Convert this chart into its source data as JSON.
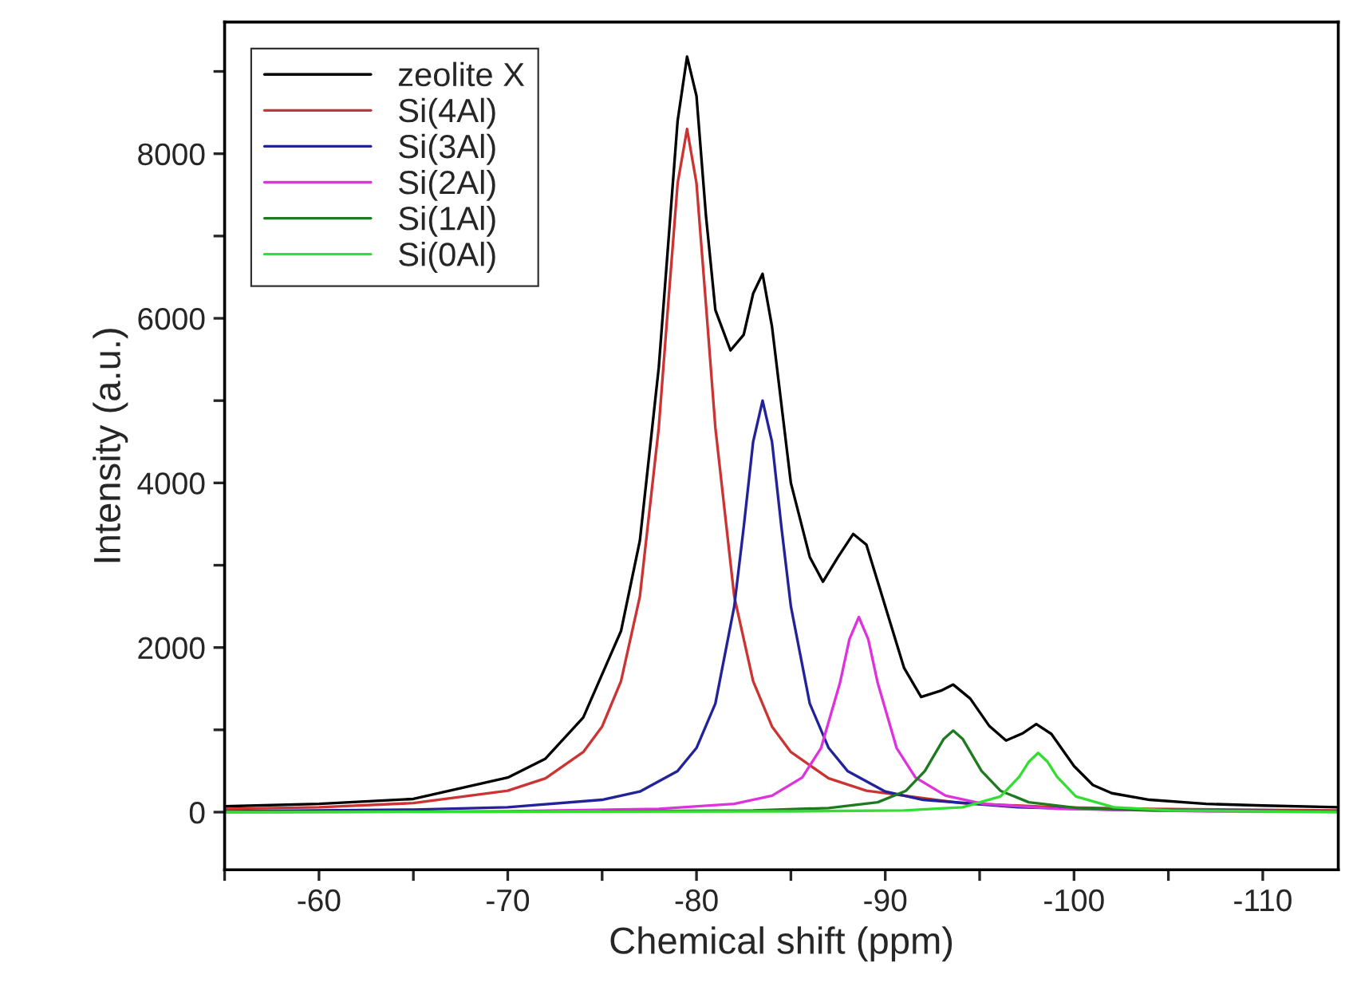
{
  "chart_data": {
    "type": "line",
    "xlabel": "Chemical shift (ppm)",
    "ylabel": "Intensity (a.u.)",
    "xlim": [
      -55,
      -114
    ],
    "ylim": [
      -700,
      9600
    ],
    "xticks": [
      {
        "value": -55,
        "label": null
      },
      -60,
      {
        "value": -65,
        "label": null
      },
      -70,
      {
        "value": -75,
        "label": null
      },
      -80,
      {
        "value": -85,
        "label": null
      },
      -90,
      {
        "value": -95,
        "label": null
      },
      -100,
      {
        "value": -105,
        "label": null
      },
      -110
    ],
    "yticks": [
      0,
      {
        "value": 1000,
        "label": null
      },
      2000,
      {
        "value": 3000,
        "label": null
      },
      4000,
      {
        "value": 5000,
        "label": null
      },
      6000,
      {
        "value": 7000,
        "label": null
      },
      8000,
      {
        "value": 9000,
        "label": null
      }
    ],
    "grid": false,
    "legend": "top left",
    "line_style": "solid",
    "marker": "none",
    "series": [
      {
        "name": "zeolite X",
        "color": "#000000",
        "x": [
          -55,
          -60,
          -65,
          -70,
          -72,
          -74,
          -76,
          -77,
          -78,
          -78.5,
          -79,
          -79.5,
          -80,
          -80.5,
          -81,
          -81.8,
          -82.5,
          -83,
          -83.5,
          -84,
          -85,
          -86,
          -86.7,
          -87.5,
          -88.3,
          -89,
          -90,
          -91,
          -91.9,
          -93,
          -93.6,
          -94.5,
          -95.5,
          -96.4,
          -97.3,
          -98,
          -98.8,
          -100,
          -101,
          -102,
          -104,
          -107,
          -110,
          -114
        ],
        "values": [
          70,
          100,
          160,
          420,
          650,
          1150,
          2200,
          3300,
          5400,
          6900,
          8400,
          9180,
          8700,
          7250,
          6100,
          5610,
          5800,
          6300,
          6540,
          5900,
          4000,
          3100,
          2800,
          3100,
          3380,
          3250,
          2500,
          1750,
          1400,
          1480,
          1550,
          1380,
          1050,
          870,
          960,
          1070,
          950,
          560,
          330,
          230,
          150,
          100,
          80,
          60
        ]
      },
      {
        "name": "Si(4Al)",
        "color": "#cc3333",
        "x": [
          -55,
          -60,
          -65,
          -70,
          -72,
          -74,
          -75,
          -76,
          -77,
          -78,
          -78.5,
          -79,
          -79.5,
          -80,
          -80.5,
          -81,
          -82,
          -83,
          -84,
          -85,
          -87,
          -89,
          -94,
          -99,
          -104,
          -114
        ],
        "values": [
          40,
          60,
          110,
          260,
          410,
          730,
          1040,
          1590,
          2620,
          4670,
          6170,
          7640,
          8300,
          7640,
          6170,
          4670,
          2620,
          1590,
          1040,
          730,
          410,
          260,
          110,
          60,
          40,
          20
        ]
      },
      {
        "name": "Si(3Al)",
        "color": "#22229a",
        "x": [
          -55,
          -65,
          -70,
          -75,
          -77,
          -79,
          -80,
          -81,
          -82,
          -82.5,
          -83,
          -83.5,
          -84,
          -84.5,
          -85,
          -86,
          -87,
          -88,
          -90,
          -92,
          -97,
          -102,
          -114
        ],
        "values": [
          10,
          30,
          60,
          150,
          250,
          500,
          780,
          1320,
          2500,
          3460,
          4500,
          5000,
          4500,
          3460,
          2500,
          1320,
          780,
          500,
          250,
          150,
          60,
          30,
          10
        ]
      },
      {
        "name": "Si(2Al)",
        "color": "#dd33dd",
        "x": [
          -55,
          -70,
          -78,
          -82,
          -84,
          -85.6,
          -86.6,
          -87.6,
          -88.1,
          -88.6,
          -89.1,
          -89.6,
          -90.6,
          -91.6,
          -93.2,
          -95.2,
          -99.2,
          -107.2,
          -114
        ],
        "values": [
          0,
          10,
          40,
          100,
          200,
          420,
          780,
          1570,
          2100,
          2370,
          2100,
          1570,
          780,
          420,
          200,
          100,
          40,
          10,
          10
        ]
      },
      {
        "name": "Si(1Al)",
        "color": "#1e7a1e",
        "x": [
          -75,
          -83,
          -87,
          -89.6,
          -91.1,
          -92.1,
          -93.1,
          -93.6,
          -94.1,
          -95.1,
          -96.1,
          -97.6,
          -100.2,
          -104.2,
          -114
        ],
        "values": [
          10,
          20,
          50,
          120,
          260,
          500,
          890,
          990,
          890,
          500,
          260,
          120,
          50,
          20,
          10
        ]
      },
      {
        "name": "Si(0Al)",
        "color": "#33dd33",
        "x": [
          -55,
          -85,
          -91,
          -94.1,
          -96.1,
          -97.1,
          -97.6,
          -98.1,
          -98.6,
          -99.1,
          -100.1,
          -102.1,
          -105.1,
          -114
        ],
        "values": [
          0,
          10,
          20,
          60,
          190,
          430,
          610,
          720,
          610,
          430,
          190,
          60,
          20,
          0
        ]
      }
    ]
  }
}
